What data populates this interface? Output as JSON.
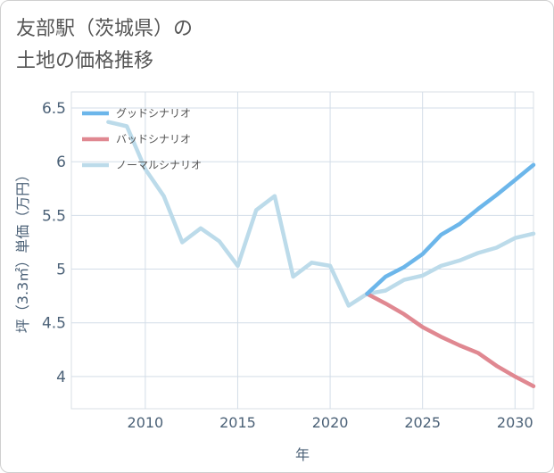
{
  "title_lines": [
    "友部駅（茨城県）の",
    "土地の価格推移"
  ],
  "chart_data": {
    "type": "line",
    "title": "友部駅（茨城県）の土地の価格推移",
    "xlabel": "年",
    "ylabel": "坪（3.3㎡）単価（万円）",
    "xlim": [
      2006,
      2031
    ],
    "ylim": [
      3.7,
      6.65
    ],
    "xticks": [
      2010,
      2015,
      2020,
      2025,
      2030
    ],
    "xtick_labels": [
      "2010",
      "2015",
      "2020",
      "2025",
      "2030"
    ],
    "yticks": [
      4,
      4.5,
      5,
      5.5,
      6,
      6.5
    ],
    "ytick_labels": [
      "4",
      "4.5",
      "5",
      "5.5",
      "6",
      "6.5"
    ],
    "grid": true,
    "legend_position": "top-left",
    "series": [
      {
        "name": "グッドシナリオ",
        "color": "#6cb6ea",
        "x": [
          2022,
          2023,
          2024,
          2025,
          2026,
          2027,
          2028,
          2029,
          2030,
          2031
        ],
        "y": [
          4.77,
          4.93,
          5.02,
          5.14,
          5.32,
          5.42,
          5.56,
          5.69,
          5.83,
          5.97
        ]
      },
      {
        "name": "バッドシナリオ",
        "color": "#e08891",
        "x": [
          2022,
          2023,
          2024,
          2025,
          2026,
          2027,
          2028,
          2029,
          2030,
          2031
        ],
        "y": [
          4.77,
          4.68,
          4.58,
          4.46,
          4.37,
          4.29,
          4.22,
          4.1,
          4.0,
          3.91
        ]
      },
      {
        "name": "ノーマルシナリオ",
        "color": "#bcdbea",
        "x": [
          2008,
          2009,
          2010,
          2011,
          2012,
          2013,
          2014,
          2015,
          2016,
          2017,
          2018,
          2019,
          2020,
          2021,
          2022,
          2023,
          2024,
          2025,
          2026,
          2027,
          2028,
          2029,
          2030,
          2031
        ],
        "y": [
          6.37,
          6.33,
          5.93,
          5.68,
          5.25,
          5.38,
          5.26,
          5.03,
          5.55,
          5.68,
          4.93,
          5.06,
          5.03,
          4.66,
          4.77,
          4.8,
          4.9,
          4.94,
          5.03,
          5.08,
          5.15,
          5.2,
          5.29,
          5.33
        ]
      }
    ]
  }
}
